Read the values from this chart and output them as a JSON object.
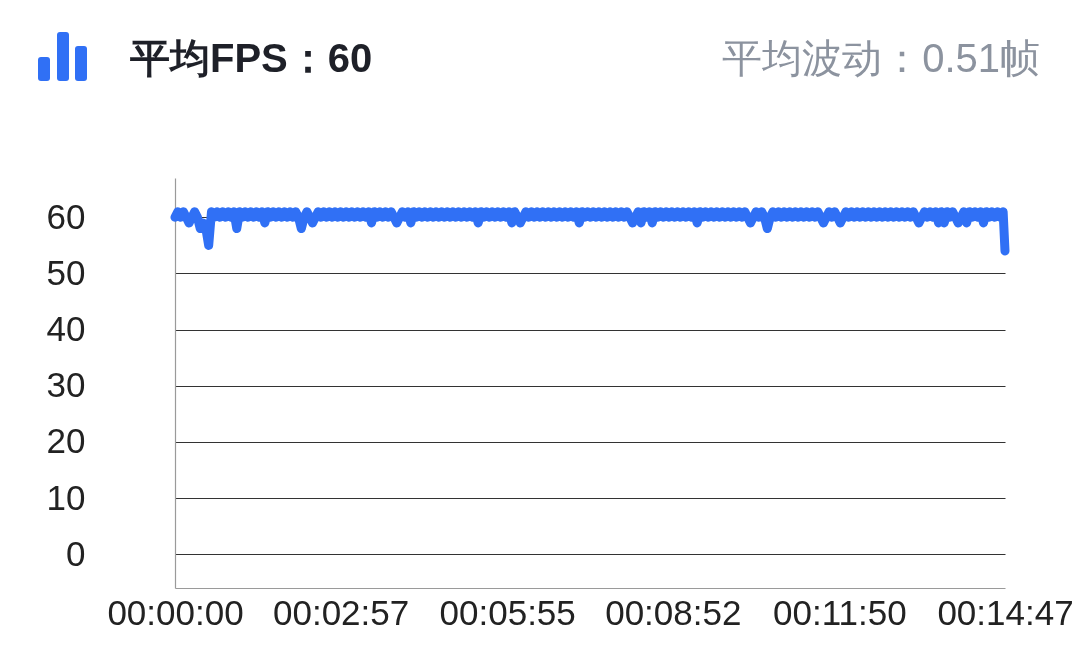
{
  "chart_data": {
    "type": "line",
    "title": "平均FPS：60",
    "subtitle": "平均波动：0.51帧",
    "x": [
      0,
      3,
      6,
      9,
      12,
      15,
      18,
      21,
      24,
      27,
      30,
      33,
      36,
      39,
      42,
      45,
      48,
      51,
      54,
      57,
      60,
      63,
      66,
      69,
      72,
      75,
      78,
      81,
      84,
      87,
      90,
      93,
      96,
      99,
      102,
      105,
      108,
      111,
      114,
      117,
      120,
      123,
      126,
      129,
      132,
      135,
      138,
      141,
      144,
      147,
      150,
      153,
      156,
      159,
      162,
      165,
      168,
      171,
      174,
      177,
      180,
      183,
      186,
      189,
      192,
      195,
      198,
      201,
      204,
      207,
      210,
      213,
      216,
      219,
      222,
      225,
      228,
      231,
      234,
      237,
      240,
      243,
      246,
      249,
      252,
      255,
      258,
      261,
      264,
      267,
      270,
      273,
      276,
      279,
      282,
      285,
      288,
      291,
      294,
      297,
      300,
      303,
      306,
      309,
      312,
      315,
      318,
      321,
      324,
      327,
      330,
      333,
      336,
      339,
      342,
      345,
      348,
      351,
      354,
      357,
      360,
      363,
      366,
      369,
      372,
      375,
      378,
      381,
      384,
      387,
      390,
      393,
      396,
      399,
      402,
      405,
      408,
      411,
      414,
      417,
      420,
      423,
      426,
      429,
      432,
      435,
      438,
      441,
      444,
      447,
      450,
      453,
      456,
      459,
      462,
      465,
      468,
      471,
      474,
      477,
      480,
      483,
      486,
      489,
      492,
      495,
      498,
      501,
      504,
      507,
      510,
      513,
      516,
      519,
      522,
      525,
      528,
      531,
      534,
      537,
      540,
      543,
      546,
      549,
      552,
      555,
      558,
      561,
      564,
      567,
      570,
      573,
      576,
      579,
      582,
      585,
      588,
      591,
      594,
      597,
      600,
      603,
      606,
      609,
      612,
      615,
      618,
      621,
      624,
      627,
      630,
      633,
      636,
      639,
      642,
      645,
      648,
      651,
      654,
      657,
      660,
      663,
      666,
      669,
      672,
      675,
      678,
      681,
      684,
      687,
      690,
      693,
      696,
      699,
      702,
      705,
      708,
      711,
      714,
      717,
      720,
      723,
      726,
      729,
      732,
      735,
      738,
      741,
      744,
      747,
      750,
      753,
      756,
      759,
      762,
      765,
      768,
      771,
      774,
      777,
      780,
      783,
      786,
      789,
      792,
      795,
      798,
      801,
      804,
      807,
      810,
      813,
      816,
      819,
      822,
      825,
      828,
      831,
      834,
      837,
      840,
      843,
      846,
      849,
      852,
      855,
      858,
      861,
      864,
      867,
      870,
      873,
      876,
      879,
      882,
      885,
      887
    ],
    "series": [
      {
        "color": "#3070f5",
        "values": [
          60,
          61,
          60,
          61,
          60,
          59,
          60,
          61,
          60,
          58,
          59,
          58,
          55,
          61,
          60,
          61,
          60,
          61,
          60,
          61,
          60,
          61,
          58,
          61,
          60,
          61,
          60,
          61,
          60,
          61,
          60,
          61,
          59,
          61,
          60,
          61,
          60,
          61,
          60,
          61,
          60,
          61,
          60,
          61,
          60,
          58,
          60,
          61,
          60,
          59,
          60,
          61,
          60,
          61,
          60,
          61,
          60,
          61,
          60,
          61,
          60,
          61,
          60,
          61,
          60,
          61,
          60,
          61,
          60,
          61,
          59,
          61,
          60,
          61,
          60,
          61,
          60,
          61,
          60,
          59,
          60,
          61,
          60,
          61,
          59,
          61,
          60,
          61,
          60,
          61,
          60,
          61,
          60,
          61,
          60,
          61,
          60,
          61,
          60,
          61,
          60,
          61,
          60,
          61,
          60,
          61,
          60,
          61,
          59,
          61,
          60,
          61,
          60,
          61,
          60,
          61,
          60,
          61,
          60,
          61,
          59,
          61,
          60,
          59,
          60,
          61,
          60,
          61,
          60,
          61,
          60,
          61,
          60,
          61,
          60,
          61,
          60,
          61,
          60,
          61,
          60,
          61,
          60,
          61,
          59,
          61,
          60,
          61,
          60,
          61,
          60,
          61,
          60,
          61,
          60,
          61,
          60,
          61,
          60,
          61,
          60,
          61,
          60,
          59,
          60,
          61,
          59,
          61,
          60,
          61,
          59,
          61,
          60,
          61,
          60,
          61,
          60,
          61,
          60,
          61,
          60,
          61,
          60,
          61,
          60,
          61,
          59,
          61,
          60,
          61,
          60,
          61,
          60,
          61,
          60,
          61,
          60,
          61,
          60,
          61,
          60,
          61,
          60,
          61,
          60,
          59,
          60,
          61,
          60,
          61,
          60,
          58,
          60,
          61,
          60,
          61,
          60,
          61,
          60,
          61,
          60,
          61,
          60,
          61,
          60,
          61,
          60,
          61,
          60,
          61,
          60,
          59,
          60,
          61,
          60,
          61,
          60,
          59,
          60,
          61,
          60,
          61,
          60,
          61,
          60,
          61,
          60,
          61,
          60,
          61,
          60,
          61,
          60,
          61,
          60,
          61,
          60,
          61,
          60,
          61,
          60,
          61,
          60,
          61,
          60,
          59,
          60,
          61,
          60,
          61,
          60,
          61,
          59,
          61,
          59,
          61,
          60,
          61,
          60,
          59,
          60,
          61,
          59,
          61,
          60,
          61,
          60,
          61,
          59,
          61,
          60,
          61,
          60,
          61,
          60,
          61,
          54
        ]
      }
    ],
    "xlim": [
      0,
      887
    ],
    "xticks": [
      {
        "value": 0,
        "label": "00:00:00"
      },
      {
        "value": 177,
        "label": "00:02:57"
      },
      {
        "value": 355,
        "label": "00:05:55"
      },
      {
        "value": 532,
        "label": "00:08:52"
      },
      {
        "value": 710,
        "label": "00:11:50"
      },
      {
        "value": 887,
        "label": "00:14:47"
      }
    ],
    "ylim": [
      -6,
      67
    ],
    "yticks": [
      0,
      10,
      20,
      30,
      40,
      50,
      60
    ],
    "grid": "y",
    "line_style": "solid"
  }
}
